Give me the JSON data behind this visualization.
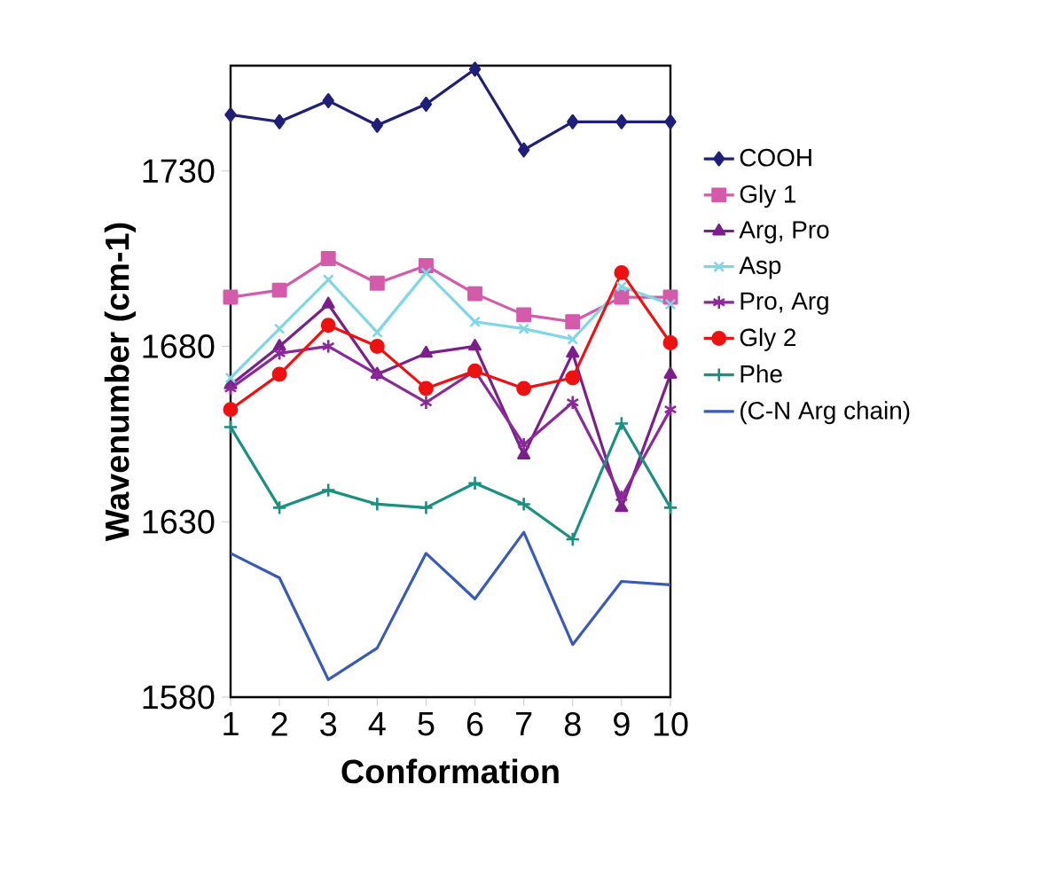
{
  "chart_data": {
    "type": "line",
    "xlabel": "Conformation",
    "ylabel": "Wavenumber (cm-1)",
    "x": [
      1,
      2,
      3,
      4,
      5,
      6,
      7,
      8,
      9,
      10
    ],
    "xlim": [
      1,
      10
    ],
    "xticks": [
      1,
      2,
      3,
      4,
      5,
      6,
      7,
      8,
      9,
      10
    ],
    "ylim": [
      1580,
      1760
    ],
    "yticks": [
      1580,
      1630,
      1680,
      1730
    ],
    "grid": false,
    "legend": "right",
    "series": [
      {
        "name": "COOH",
        "color": "#1f1f7a",
        "marker": "diamond",
        "values": [
          1746,
          1744,
          1750,
          1743,
          1749,
          1759,
          1736,
          1744,
          1744,
          1744
        ]
      },
      {
        "name": "Gly 1",
        "color": "#d45aaa",
        "marker": "square",
        "values": [
          1694,
          1696,
          1705,
          1698,
          1703,
          1695,
          1689,
          1687,
          1694,
          1694
        ]
      },
      {
        "name": "Arg, Pro",
        "color": "#7b1f8a",
        "marker": "triangle",
        "values": [
          1669,
          1680,
          1692,
          1672,
          1678,
          1680,
          1649,
          1678,
          1634,
          1672
        ]
      },
      {
        "name": "Asp",
        "color": "#7fd6e6",
        "marker": "cross",
        "values": [
          1671,
          1685,
          1699,
          1684,
          1701,
          1687,
          1685,
          1682,
          1697,
          1692
        ]
      },
      {
        "name": "Pro, Arg",
        "color": "#8a2a9a",
        "marker": "cross",
        "values": [
          1668,
          1678,
          1680,
          1672,
          1664,
          1673,
          1652,
          1664,
          1637,
          1662
        ]
      },
      {
        "name": "Gly 2",
        "color": "#ee1111",
        "marker": "circle",
        "values": [
          1662,
          1672,
          1686,
          1680,
          1668,
          1673,
          1668,
          1671,
          1701,
          1681
        ]
      },
      {
        "name": "Phe",
        "color": "#1a9080",
        "marker": "plus",
        "values": [
          1657,
          1634,
          1639,
          1635,
          1634,
          1641,
          1635,
          1625,
          1658,
          1634
        ]
      },
      {
        "name": "(C-N Arg chain)",
        "color": "#3a5ab8",
        "marker": "none",
        "values": [
          1621,
          1614,
          1585,
          1594,
          1621,
          1608,
          1627,
          1595,
          1613,
          1612
        ]
      }
    ]
  }
}
